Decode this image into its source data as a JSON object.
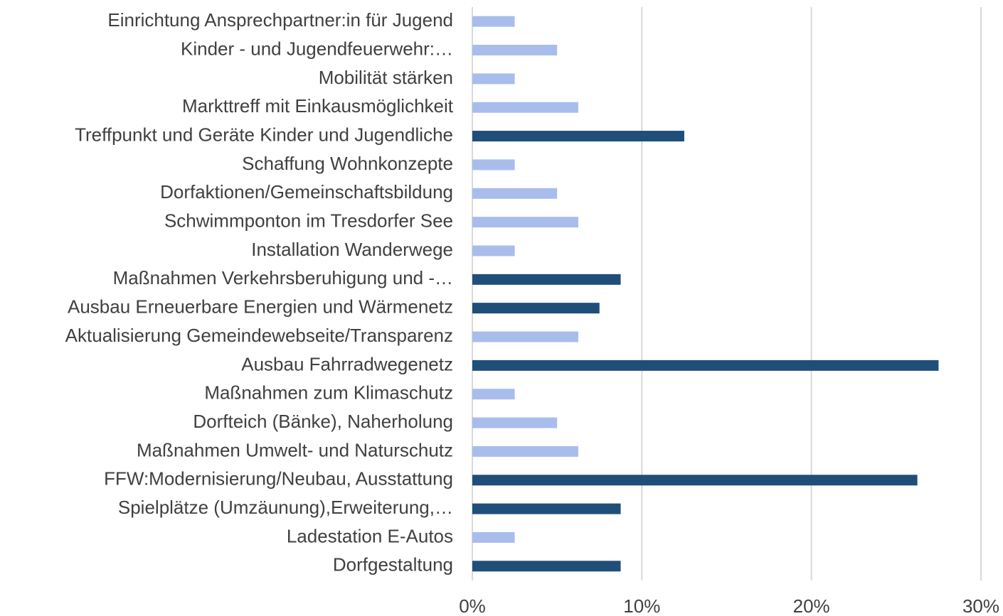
{
  "chart_data": {
    "type": "barh",
    "categories": [
      "Einrichtung Ansprechpartner:in für Jugend",
      "Kinder - und Jugendfeuerwehr:…",
      "Mobilität stärken",
      "Markttreff mit Einkausmöglichkeit",
      "Treffpunkt und Geräte Kinder und Jugendliche",
      "Schaffung Wohnkonzepte",
      "Dorfaktionen/Gemeinschaftsbildung",
      "Schwimmponton im Tresdorfer See",
      "Installation Wanderwege",
      "Maßnahmen Verkehrsberuhigung und -…",
      "Ausbau Erneuerbare Energien und Wärmenetz",
      "Aktualisierung Gemeindewebseite/Transparenz",
      "Ausbau Fahrradwegenetz",
      "Maßnahmen zum Klimaschutz",
      "Dorfteich (Bänke), Naherholung",
      "Maßnahmen Umwelt- und Naturschutz",
      "FFW:Modernisierung/Neubau, Ausstattung",
      "Spielplätze (Umzäunung),Erweiterung,…",
      "Ladestation E-Autos",
      "Dorfgestaltung"
    ],
    "values": [
      2.5,
      5,
      2.5,
      6.25,
      12.5,
      2.5,
      5,
      6.25,
      2.5,
      8.75,
      7.5,
      6.25,
      27.5,
      2.5,
      5,
      6.25,
      26.25,
      8.75,
      2.5,
      8.75
    ],
    "colors": [
      "#a9bdec",
      "#a9bdec",
      "#a9bdec",
      "#a9bdec",
      "#1f4e79",
      "#a9bdec",
      "#a9bdec",
      "#a9bdec",
      "#a9bdec",
      "#1f4e79",
      "#1f4e79",
      "#a9bdec",
      "#1f4e79",
      "#a9bdec",
      "#a9bdec",
      "#a9bdec",
      "#1f4e79",
      "#1f4e79",
      "#a9bdec",
      "#1f4e79"
    ],
    "xlim": [
      0,
      30
    ],
    "xticks": [
      {
        "value": 0,
        "label": "0%"
      },
      {
        "value": 10,
        "label": "10%"
      },
      {
        "value": 20,
        "label": "20%"
      },
      {
        "value": 30,
        "label": "30%"
      }
    ],
    "grid": true
  }
}
